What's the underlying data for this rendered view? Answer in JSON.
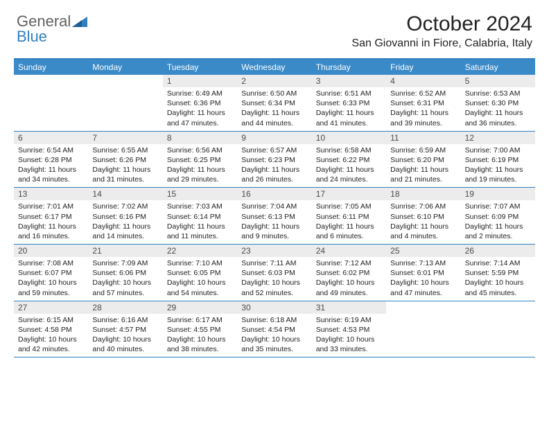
{
  "brand": {
    "part1": "General",
    "part2": "Blue"
  },
  "title": "October 2024",
  "location": "San Giovanni in Fiore, Calabria, Italy",
  "colors": {
    "header_bg": "#3a8ac8",
    "border": "#2f7fc1",
    "daynum_bg": "#ececec",
    "text": "#222222"
  },
  "day_headers": [
    "Sunday",
    "Monday",
    "Tuesday",
    "Wednesday",
    "Thursday",
    "Friday",
    "Saturday"
  ],
  "weeks": [
    [
      {
        "n": "",
        "sr": "",
        "ss": "",
        "dl": ""
      },
      {
        "n": "",
        "sr": "",
        "ss": "",
        "dl": ""
      },
      {
        "n": "1",
        "sr": "Sunrise: 6:49 AM",
        "ss": "Sunset: 6:36 PM",
        "dl": "Daylight: 11 hours and 47 minutes."
      },
      {
        "n": "2",
        "sr": "Sunrise: 6:50 AM",
        "ss": "Sunset: 6:34 PM",
        "dl": "Daylight: 11 hours and 44 minutes."
      },
      {
        "n": "3",
        "sr": "Sunrise: 6:51 AM",
        "ss": "Sunset: 6:33 PM",
        "dl": "Daylight: 11 hours and 41 minutes."
      },
      {
        "n": "4",
        "sr": "Sunrise: 6:52 AM",
        "ss": "Sunset: 6:31 PM",
        "dl": "Daylight: 11 hours and 39 minutes."
      },
      {
        "n": "5",
        "sr": "Sunrise: 6:53 AM",
        "ss": "Sunset: 6:30 PM",
        "dl": "Daylight: 11 hours and 36 minutes."
      }
    ],
    [
      {
        "n": "6",
        "sr": "Sunrise: 6:54 AM",
        "ss": "Sunset: 6:28 PM",
        "dl": "Daylight: 11 hours and 34 minutes."
      },
      {
        "n": "7",
        "sr": "Sunrise: 6:55 AM",
        "ss": "Sunset: 6:26 PM",
        "dl": "Daylight: 11 hours and 31 minutes."
      },
      {
        "n": "8",
        "sr": "Sunrise: 6:56 AM",
        "ss": "Sunset: 6:25 PM",
        "dl": "Daylight: 11 hours and 29 minutes."
      },
      {
        "n": "9",
        "sr": "Sunrise: 6:57 AM",
        "ss": "Sunset: 6:23 PM",
        "dl": "Daylight: 11 hours and 26 minutes."
      },
      {
        "n": "10",
        "sr": "Sunrise: 6:58 AM",
        "ss": "Sunset: 6:22 PM",
        "dl": "Daylight: 11 hours and 24 minutes."
      },
      {
        "n": "11",
        "sr": "Sunrise: 6:59 AM",
        "ss": "Sunset: 6:20 PM",
        "dl": "Daylight: 11 hours and 21 minutes."
      },
      {
        "n": "12",
        "sr": "Sunrise: 7:00 AM",
        "ss": "Sunset: 6:19 PM",
        "dl": "Daylight: 11 hours and 19 minutes."
      }
    ],
    [
      {
        "n": "13",
        "sr": "Sunrise: 7:01 AM",
        "ss": "Sunset: 6:17 PM",
        "dl": "Daylight: 11 hours and 16 minutes."
      },
      {
        "n": "14",
        "sr": "Sunrise: 7:02 AM",
        "ss": "Sunset: 6:16 PM",
        "dl": "Daylight: 11 hours and 14 minutes."
      },
      {
        "n": "15",
        "sr": "Sunrise: 7:03 AM",
        "ss": "Sunset: 6:14 PM",
        "dl": "Daylight: 11 hours and 11 minutes."
      },
      {
        "n": "16",
        "sr": "Sunrise: 7:04 AM",
        "ss": "Sunset: 6:13 PM",
        "dl": "Daylight: 11 hours and 9 minutes."
      },
      {
        "n": "17",
        "sr": "Sunrise: 7:05 AM",
        "ss": "Sunset: 6:11 PM",
        "dl": "Daylight: 11 hours and 6 minutes."
      },
      {
        "n": "18",
        "sr": "Sunrise: 7:06 AM",
        "ss": "Sunset: 6:10 PM",
        "dl": "Daylight: 11 hours and 4 minutes."
      },
      {
        "n": "19",
        "sr": "Sunrise: 7:07 AM",
        "ss": "Sunset: 6:09 PM",
        "dl": "Daylight: 11 hours and 2 minutes."
      }
    ],
    [
      {
        "n": "20",
        "sr": "Sunrise: 7:08 AM",
        "ss": "Sunset: 6:07 PM",
        "dl": "Daylight: 10 hours and 59 minutes."
      },
      {
        "n": "21",
        "sr": "Sunrise: 7:09 AM",
        "ss": "Sunset: 6:06 PM",
        "dl": "Daylight: 10 hours and 57 minutes."
      },
      {
        "n": "22",
        "sr": "Sunrise: 7:10 AM",
        "ss": "Sunset: 6:05 PM",
        "dl": "Daylight: 10 hours and 54 minutes."
      },
      {
        "n": "23",
        "sr": "Sunrise: 7:11 AM",
        "ss": "Sunset: 6:03 PM",
        "dl": "Daylight: 10 hours and 52 minutes."
      },
      {
        "n": "24",
        "sr": "Sunrise: 7:12 AM",
        "ss": "Sunset: 6:02 PM",
        "dl": "Daylight: 10 hours and 49 minutes."
      },
      {
        "n": "25",
        "sr": "Sunrise: 7:13 AM",
        "ss": "Sunset: 6:01 PM",
        "dl": "Daylight: 10 hours and 47 minutes."
      },
      {
        "n": "26",
        "sr": "Sunrise: 7:14 AM",
        "ss": "Sunset: 5:59 PM",
        "dl": "Daylight: 10 hours and 45 minutes."
      }
    ],
    [
      {
        "n": "27",
        "sr": "Sunrise: 6:15 AM",
        "ss": "Sunset: 4:58 PM",
        "dl": "Daylight: 10 hours and 42 minutes."
      },
      {
        "n": "28",
        "sr": "Sunrise: 6:16 AM",
        "ss": "Sunset: 4:57 PM",
        "dl": "Daylight: 10 hours and 40 minutes."
      },
      {
        "n": "29",
        "sr": "Sunrise: 6:17 AM",
        "ss": "Sunset: 4:55 PM",
        "dl": "Daylight: 10 hours and 38 minutes."
      },
      {
        "n": "30",
        "sr": "Sunrise: 6:18 AM",
        "ss": "Sunset: 4:54 PM",
        "dl": "Daylight: 10 hours and 35 minutes."
      },
      {
        "n": "31",
        "sr": "Sunrise: 6:19 AM",
        "ss": "Sunset: 4:53 PM",
        "dl": "Daylight: 10 hours and 33 minutes."
      },
      {
        "n": "",
        "sr": "",
        "ss": "",
        "dl": ""
      },
      {
        "n": "",
        "sr": "",
        "ss": "",
        "dl": ""
      }
    ]
  ]
}
